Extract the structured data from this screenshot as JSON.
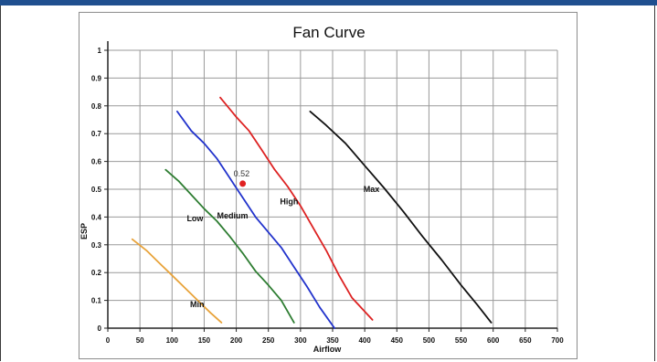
{
  "chart_data": {
    "type": "line",
    "title": "Fan Curve",
    "xlabel": "Airflow",
    "ylabel": "ESP",
    "xlim": [
      0,
      700
    ],
    "ylim": [
      0,
      1
    ],
    "x_ticks": [
      0,
      50,
      100,
      150,
      200,
      250,
      300,
      350,
      400,
      450,
      500,
      550,
      600,
      650,
      700
    ],
    "y_ticks": [
      "0",
      "0.1",
      "0.2",
      "0.3",
      "0.4",
      "0.5",
      "0.6",
      "0.7",
      "0.8",
      "0.9",
      "1"
    ],
    "grid": true,
    "series": [
      {
        "name": "Min",
        "color": "#e8a33a",
        "x": [
          38,
          60,
          80,
          100,
          120,
          140,
          160,
          177
        ],
        "y": [
          0.32,
          0.28,
          0.235,
          0.19,
          0.145,
          0.1,
          0.055,
          0.02
        ]
      },
      {
        "name": "Low",
        "color": "#2e7d32",
        "x": [
          90,
          110,
          130,
          150,
          170,
          190,
          210,
          230,
          250,
          270,
          290
        ],
        "y": [
          0.57,
          0.53,
          0.48,
          0.43,
          0.385,
          0.33,
          0.27,
          0.205,
          0.155,
          0.1,
          0.02
        ]
      },
      {
        "name": "Medium",
        "color": "#2233cc",
        "x": [
          108,
          130,
          150,
          170,
          190,
          210,
          230,
          250,
          270,
          290,
          310,
          330,
          353
        ],
        "y": [
          0.78,
          0.71,
          0.665,
          0.61,
          0.54,
          0.47,
          0.4,
          0.345,
          0.29,
          0.22,
          0.15,
          0.075,
          0
        ]
      },
      {
        "name": "High",
        "color": "#dd2222",
        "x": [
          175,
          200,
          220,
          240,
          260,
          280,
          300,
          320,
          340,
          360,
          380,
          412
        ],
        "y": [
          0.83,
          0.76,
          0.71,
          0.64,
          0.57,
          0.51,
          0.44,
          0.36,
          0.28,
          0.19,
          0.11,
          0.03
        ]
      },
      {
        "name": "Max",
        "color": "#111111",
        "x": [
          315,
          340,
          370,
          400,
          430,
          460,
          490,
          520,
          550,
          575,
          597
        ],
        "y": [
          0.78,
          0.73,
          0.665,
          0.585,
          0.505,
          0.42,
          0.33,
          0.245,
          0.155,
          0.085,
          0.02
        ]
      }
    ],
    "series_labels": [
      {
        "text": "Min",
        "x": 128,
        "y": 0.085
      },
      {
        "text": "Low",
        "x": 123,
        "y": 0.395
      },
      {
        "text": "Medium",
        "x": 170,
        "y": 0.405
      },
      {
        "text": "High",
        "x": 268,
        "y": 0.455
      },
      {
        "text": "Max",
        "x": 398,
        "y": 0.5
      }
    ],
    "operating_point": {
      "x": 210,
      "y": 0.52,
      "label": "0.52",
      "color": "#e02020"
    }
  }
}
